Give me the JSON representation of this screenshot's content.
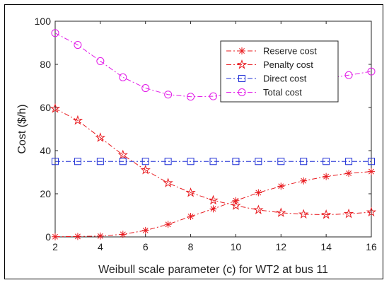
{
  "chart_data": {
    "type": "line",
    "title": "",
    "xlabel": "Weibull scale parameter (c) for WT2 at bus 11",
    "ylabel": "Cost ($/h)",
    "xlim": [
      2,
      16
    ],
    "ylim": [
      0,
      100
    ],
    "xticks": [
      2,
      4,
      6,
      8,
      10,
      12,
      14,
      16
    ],
    "yticks": [
      0,
      20,
      40,
      60,
      80,
      100
    ],
    "grid": false,
    "legend_position": "top-right",
    "x": [
      2,
      3,
      4,
      5,
      6,
      7,
      8,
      9,
      10,
      11,
      12,
      13,
      14,
      15,
      16
    ],
    "series": [
      {
        "name": "Reserve cost",
        "color": "#e8191e",
        "marker": "asterisk",
        "values": [
          0.1,
          0.2,
          0.4,
          1.2,
          3.0,
          5.8,
          9.5,
          13.0,
          16.8,
          20.5,
          23.5,
          26.0,
          28.0,
          29.5,
          30.3
        ]
      },
      {
        "name": "Penalty cost",
        "color": "#e8191e",
        "marker": "pentagram",
        "values": [
          59.5,
          54.0,
          46.0,
          38.0,
          31.0,
          25.0,
          20.5,
          17.0,
          14.5,
          12.5,
          11.2,
          10.5,
          10.3,
          10.7,
          11.5
        ]
      },
      {
        "name": "Direct cost",
        "color": "#1f2fd6",
        "marker": "square",
        "values": [
          35,
          35,
          35,
          35,
          35,
          35,
          35,
          35,
          35,
          35,
          35,
          35,
          35,
          35,
          35
        ]
      },
      {
        "name": "Total cost",
        "color": "#e21ce8",
        "marker": "circle",
        "values": [
          94.5,
          89.0,
          81.5,
          74.0,
          69.0,
          66.0,
          65.0,
          65.2,
          66.4,
          68.2,
          70.0,
          71.8,
          73.4,
          75.0,
          76.7
        ]
      }
    ]
  }
}
